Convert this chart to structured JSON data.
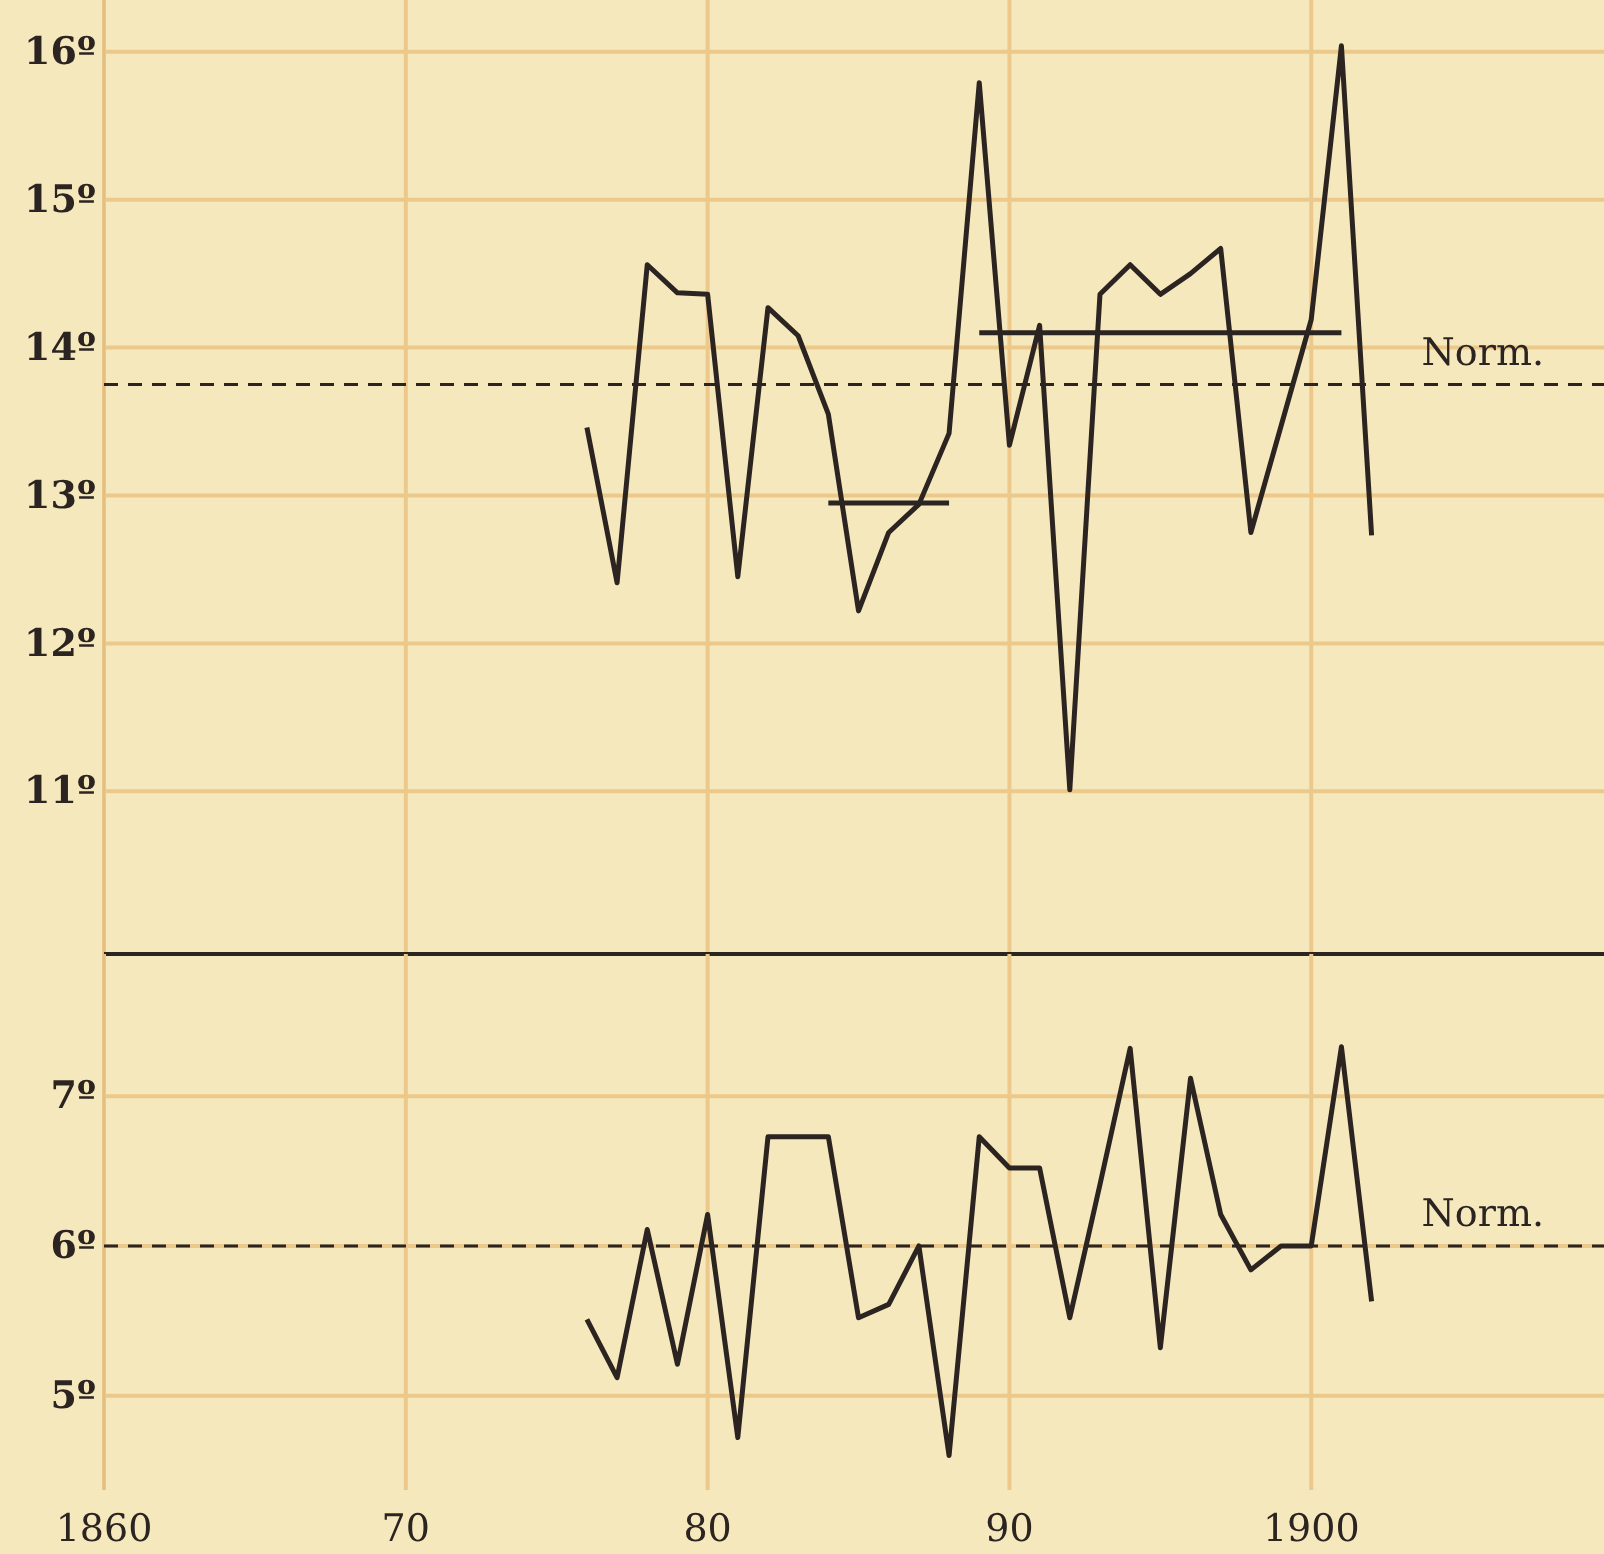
{
  "chart_data": [
    {
      "type": "line",
      "x": [
        1876,
        1877,
        1878,
        1879,
        1880,
        1881,
        1882,
        1883,
        1884,
        1885,
        1886,
        1887,
        1888,
        1889,
        1890,
        1891,
        1892,
        1893,
        1894,
        1895,
        1896,
        1897,
        1898,
        1899,
        1900,
        1901,
        1902
      ],
      "series": [
        {
          "color": "#2b2420",
          "values": [
            13.46,
            12.41,
            14.56,
            14.37,
            14.36,
            12.45,
            14.27,
            14.08,
            13.55,
            12.22,
            12.75,
            12.94,
            13.42,
            15.79,
            13.34,
            14.15,
            11.01,
            14.36,
            14.56,
            14.36,
            14.5,
            14.67,
            12.75,
            13.47,
            14.19,
            16.04,
            12.73
          ]
        },
        {
          "type": "line",
          "color": "#2b2420",
          "x": [
            1884,
            1888
          ],
          "values": [
            12.95,
            12.95
          ]
        },
        {
          "type": "line",
          "color": "#2b2420",
          "x": [
            1889,
            1901
          ],
          "values": [
            14.1,
            14.1
          ]
        }
      ],
      "xlim": [
        1860,
        1909.7
      ],
      "xticks": [
        1860,
        1870,
        1880,
        1890,
        1900
      ],
      "ylim": [
        9.9,
        16.35
      ],
      "yticks": [
        {
          "value": 11,
          "label": "11º"
        },
        {
          "value": 12,
          "label": "12º"
        },
        {
          "value": 13,
          "label": "13º"
        },
        {
          "value": 14,
          "label": "14º"
        },
        {
          "value": 15,
          "label": "15º"
        },
        {
          "value": 16,
          "label": "16º"
        }
      ],
      "tick_labels": "y",
      "grid": true,
      "line_style": "solid",
      "ref_lines": [
        {
          "axis": "y",
          "value": 13.75,
          "label": "Norm.",
          "line_style": "dashed",
          "color": "#2b2420"
        }
      ]
    },
    {
      "type": "line",
      "x": [
        1876,
        1877,
        1878,
        1879,
        1880,
        1881,
        1882,
        1883,
        1884,
        1885,
        1886,
        1887,
        1888,
        1889,
        1890,
        1891,
        1892,
        1893,
        1894,
        1895,
        1896,
        1897,
        1898,
        1899,
        1900,
        1901,
        1902
      ],
      "series": [
        {
          "color": "#2b2420",
          "values": [
            5.51,
            5.12,
            6.11,
            5.21,
            6.21,
            4.72,
            6.73,
            6.73,
            6.73,
            5.52,
            5.61,
            6.0,
            4.6,
            6.73,
            6.52,
            6.52,
            5.52,
            6.41,
            7.32,
            5.32,
            7.12,
            6.21,
            5.84,
            6.0,
            6.0,
            7.33,
            5.63
          ]
        }
      ],
      "xlim": [
        1860,
        1909.7
      ],
      "xticks": [
        {
          "value": 1860,
          "label": "1860"
        },
        {
          "value": 1870,
          "label": "70"
        },
        {
          "value": 1880,
          "label": "80"
        },
        {
          "value": 1890,
          "label": "90"
        },
        {
          "value": 1900,
          "label": "1900"
        }
      ],
      "ylim": [
        4.37,
        7.95
      ],
      "yticks": [
        {
          "value": 5,
          "label": "5º"
        },
        {
          "value": 6,
          "label": "6º"
        },
        {
          "value": 7,
          "label": "7º"
        }
      ],
      "grid": true,
      "line_style": "solid",
      "ref_lines": [
        {
          "axis": "y",
          "value": 6.0,
          "label": "Norm.",
          "line_style": "dashed",
          "color": "#2b2420"
        }
      ]
    }
  ]
}
